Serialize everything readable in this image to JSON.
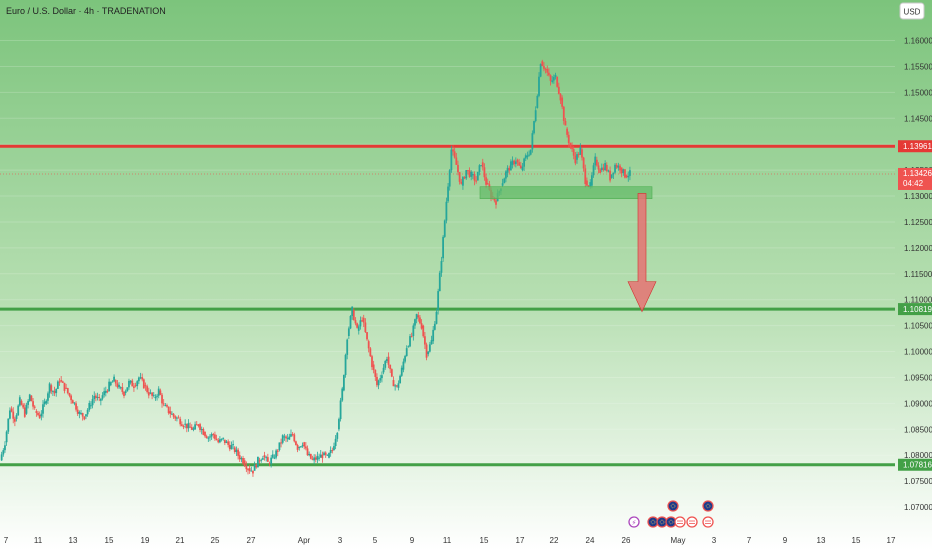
{
  "header": {
    "title": "Euro / U.S. Dollar · 4h · TRADENATION",
    "currency_button": "USD"
  },
  "colors": {
    "up": "#26a69a",
    "down": "#ef5350",
    "resistance": "#e53935",
    "support": "#43a047",
    "zone": "#66bb6a",
    "arrow": "#e57373",
    "background_top": "#7cc47c",
    "background_bottom": "#ffffff"
  },
  "chart_data": {
    "type": "candlestick",
    "timeframe": "4h",
    "y_axis": {
      "range": [
        1.0675,
        1.163
      ],
      "ticks": [
        "1.16000",
        "1.15500",
        "1.15000",
        "1.14500",
        "1.14000",
        "1.13500",
        "1.13000",
        "1.12500",
        "1.12000",
        "1.11500",
        "1.11000",
        "1.10500",
        "1.10000",
        "1.09500",
        "1.09000",
        "1.08500",
        "1.08000",
        "1.07500",
        "1.07000"
      ]
    },
    "x_axis": {
      "ticks": [
        "7",
        "11",
        "13",
        "15",
        "19",
        "21",
        "25",
        "27",
        "Apr",
        "3",
        "5",
        "9",
        "11",
        "15",
        "17",
        "22",
        "24",
        "26",
        "May",
        "3",
        "7",
        "9",
        "13",
        "15",
        "17"
      ]
    },
    "levels": [
      {
        "name": "resistance",
        "value": 1.13961,
        "label": "1.13961"
      },
      {
        "name": "current-price",
        "value": 1.13426,
        "label": "1.13426",
        "countdown": "04:42"
      },
      {
        "name": "support-mid",
        "value": 1.10819,
        "label": "1.10819"
      },
      {
        "name": "support-low",
        "value": 1.07816,
        "label": "1.07816"
      }
    ],
    "zone": {
      "from": 1.1295,
      "to": 1.1318
    },
    "forecast_arrow": {
      "from": 1.1305,
      "to": 1.1077
    },
    "path_points": [
      [
        0,
        1.079
      ],
      [
        5,
        1.0825
      ],
      [
        10,
        1.089
      ],
      [
        15,
        1.087
      ],
      [
        20,
        1.0905
      ],
      [
        25,
        1.088
      ],
      [
        30,
        1.0915
      ],
      [
        35,
        1.0885
      ],
      [
        40,
        1.0875
      ],
      [
        45,
        1.09
      ],
      [
        50,
        1.0935
      ],
      [
        55,
        1.092
      ],
      [
        60,
        1.0945
      ],
      [
        65,
        1.093
      ],
      [
        70,
        1.0915
      ],
      [
        75,
        1.09
      ],
      [
        80,
        1.088
      ],
      [
        85,
        1.0875
      ],
      [
        90,
        1.0895
      ],
      [
        95,
        1.0915
      ],
      [
        100,
        1.0905
      ],
      [
        105,
        1.092
      ],
      [
        110,
        1.0935
      ],
      [
        115,
        1.0945
      ],
      [
        120,
        1.093
      ],
      [
        125,
        1.092
      ],
      [
        130,
        1.094
      ],
      [
        135,
        1.0935
      ],
      [
        140,
        1.095
      ],
      [
        145,
        1.0935
      ],
      [
        150,
        1.092
      ],
      [
        155,
        1.091
      ],
      [
        160,
        1.0925
      ],
      [
        165,
        1.0895
      ],
      [
        170,
        1.0885
      ],
      [
        175,
        1.0875
      ],
      [
        180,
        1.087
      ],
      [
        185,
        1.086
      ],
      [
        190,
        1.0855
      ],
      [
        195,
        1.085
      ],
      [
        200,
        1.086
      ],
      [
        205,
        1.0845
      ],
      [
        210,
        1.0835
      ],
      [
        215,
        1.084
      ],
      [
        220,
        1.0825
      ],
      [
        225,
        1.083
      ],
      [
        230,
        1.082
      ],
      [
        235,
        1.0815
      ],
      [
        240,
        1.08
      ],
      [
        245,
        1.079
      ],
      [
        250,
        1.0775
      ],
      [
        255,
        1.077
      ],
      [
        260,
        1.079
      ],
      [
        265,
        1.08
      ],
      [
        270,
        1.0785
      ],
      [
        275,
        1.0795
      ],
      [
        280,
        1.081
      ],
      [
        285,
        1.0835
      ],
      [
        290,
        1.083
      ],
      [
        295,
        1.084
      ],
      [
        300,
        1.0815
      ],
      [
        305,
        1.0825
      ],
      [
        310,
        1.08
      ],
      [
        315,
        1.079
      ],
      [
        320,
        1.0795
      ],
      [
        325,
        1.08
      ],
      [
        330,
        1.0795
      ],
      [
        335,
        1.081
      ],
      [
        340,
        1.085
      ],
      [
        345,
        1.0925
      ],
      [
        350,
        1.103
      ],
      [
        355,
        1.108
      ],
      [
        360,
        1.104
      ],
      [
        365,
        1.1065
      ],
      [
        370,
        1.102
      ],
      [
        375,
        1.0975
      ],
      [
        380,
        1.0935
      ],
      [
        385,
        1.096
      ],
      [
        390,
        1.099
      ],
      [
        395,
        1.0945
      ],
      [
        400,
        1.093
      ],
      [
        405,
        1.0965
      ],
      [
        410,
        1.101
      ],
      [
        415,
        1.103
      ],
      [
        420,
        1.107
      ],
      [
        425,
        1.105
      ],
      [
        430,
        1.0995
      ],
      [
        435,
        1.102
      ],
      [
        440,
        1.108
      ],
      [
        445,
        1.118
      ],
      [
        450,
        1.129
      ],
      [
        455,
        1.139
      ],
      [
        460,
        1.136
      ],
      [
        465,
        1.132
      ],
      [
        470,
        1.135
      ],
      [
        475,
        1.134
      ],
      [
        480,
        1.133
      ],
      [
        485,
        1.1365
      ],
      [
        490,
        1.1325
      ],
      [
        495,
        1.13
      ],
      [
        500,
        1.129
      ],
      [
        505,
        1.132
      ],
      [
        510,
        1.1345
      ],
      [
        515,
        1.136
      ],
      [
        520,
        1.137
      ],
      [
        525,
        1.135
      ],
      [
        530,
        1.1375
      ],
      [
        535,
        1.139
      ],
      [
        540,
        1.147
      ],
      [
        545,
        1.156
      ],
      [
        550,
        1.1545
      ],
      [
        555,
        1.152
      ],
      [
        560,
        1.153
      ],
      [
        565,
        1.149
      ],
      [
        570,
        1.143
      ],
      [
        575,
        1.1395
      ],
      [
        580,
        1.137
      ],
      [
        585,
        1.139
      ],
      [
        590,
        1.133
      ],
      [
        595,
        1.132
      ],
      [
        600,
        1.137
      ],
      [
        605,
        1.135
      ],
      [
        610,
        1.136
      ],
      [
        615,
        1.1335
      ],
      [
        620,
        1.136
      ],
      [
        625,
        1.1355
      ],
      [
        630,
        1.134
      ],
      [
        635,
        1.1343
      ]
    ]
  },
  "events": [
    {
      "icon": "lightning-icon",
      "label": "⚡"
    },
    {
      "icon": "eu-flag-icon",
      "label": ""
    },
    {
      "icon": "us-flag-icon",
      "label": ""
    }
  ]
}
